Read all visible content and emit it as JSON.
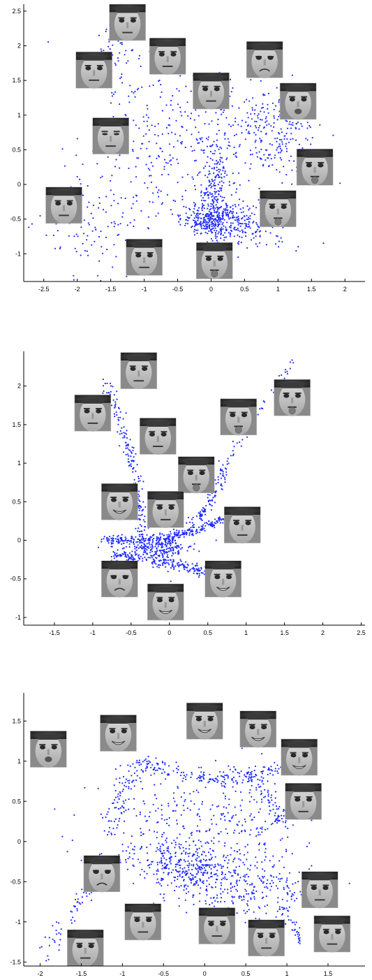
{
  "chart_data": [
    {
      "type": "scatter",
      "title": "",
      "xlabel": "",
      "ylabel": "",
      "xlim": [
        -2.8,
        2.3
      ],
      "ylim": [
        -1.4,
        2.6
      ],
      "xticks": [
        -2.5,
        -2,
        -1.5,
        -1,
        -0.5,
        0,
        0.5,
        1,
        1.5,
        2
      ],
      "xtick_labels": [
        "-2.5",
        "-2",
        "-1.5",
        "-1",
        "-0.5",
        "0",
        "0.5",
        "1",
        "1.5",
        "2"
      ],
      "yticks": [
        -1,
        -0.5,
        0,
        0.5,
        1,
        1.5,
        2,
        2.5
      ],
      "ytick_labels": [
        "-1",
        "-0.5",
        "0",
        "0.5",
        "1",
        "1.5",
        "2",
        "2.5"
      ],
      "grid": false,
      "marker_color": "#1f2bff",
      "face_thumbnails": [
        {
          "x": -1.25,
          "y": 2.45,
          "expression": "neutral"
        },
        {
          "x": -1.75,
          "y": 1.65,
          "expression": "neutral"
        },
        {
          "x": -0.65,
          "y": 1.85,
          "expression": "neutral"
        },
        {
          "x": 0.0,
          "y": 1.35,
          "expression": "neutral"
        },
        {
          "x": 0.8,
          "y": 1.8,
          "expression": "frown"
        },
        {
          "x": 1.3,
          "y": 1.2,
          "expression": "pout"
        },
        {
          "x": -1.5,
          "y": 0.7,
          "expression": "squint"
        },
        {
          "x": 1.55,
          "y": 0.25,
          "expression": "tongue"
        },
        {
          "x": 1.0,
          "y": -0.35,
          "expression": "tongue"
        },
        {
          "x": -2.2,
          "y": -0.3,
          "expression": "neutral"
        },
        {
          "x": -1.0,
          "y": -1.05,
          "expression": "neutral"
        },
        {
          "x": 0.05,
          "y": -1.1,
          "expression": "tongue"
        }
      ],
      "clusters": [
        {
          "cx": 0.05,
          "cy": -0.5,
          "sx": 0.25,
          "sy": 0.12,
          "n": 320
        },
        {
          "cx": 0.05,
          "cy": -0.05,
          "sx": 0.12,
          "sy": 0.45,
          "n": 240
        },
        {
          "cx": 0.9,
          "cy": 0.75,
          "sx": 0.35,
          "sy": 0.35,
          "n": 260
        },
        {
          "cx": -0.7,
          "cy": 0.6,
          "sx": 0.55,
          "sy": 0.55,
          "n": 240
        },
        {
          "cx": -1.7,
          "cy": -0.5,
          "sx": 0.45,
          "sy": 0.4,
          "n": 120
        },
        {
          "cx": -1.4,
          "cy": 1.8,
          "sx": 0.2,
          "sy": 0.35,
          "n": 70
        },
        {
          "cx": 0.6,
          "cy": -0.6,
          "sx": 0.3,
          "sy": 0.18,
          "n": 120
        }
      ]
    },
    {
      "type": "scatter",
      "title": "",
      "xlabel": "",
      "ylabel": "",
      "xlim": [
        -1.9,
        2.55
      ],
      "ylim": [
        -1.1,
        2.45
      ],
      "xticks": [
        -1.5,
        -1,
        -0.5,
        0,
        0.5,
        1,
        1.5,
        2,
        2.5
      ],
      "xtick_labels": [
        "-1.5",
        "-1",
        "-0.5",
        "0",
        "0.5",
        "1",
        "1.5",
        "2",
        "2.5"
      ],
      "yticks": [
        -1,
        -0.5,
        0,
        0.5,
        1,
        1.5,
        2
      ],
      "ytick_labels": [
        "-1",
        "-0.5",
        "0",
        "0.5",
        "1",
        "1.5",
        "2"
      ],
      "grid": false,
      "marker_color": "#1f2bff",
      "face_thumbnails": [
        {
          "x": -0.4,
          "y": 2.2,
          "expression": "neutral"
        },
        {
          "x": -1.0,
          "y": 1.65,
          "expression": "neutral"
        },
        {
          "x": -0.15,
          "y": 1.35,
          "expression": "neutral"
        },
        {
          "x": 0.9,
          "y": 1.6,
          "expression": "tongue"
        },
        {
          "x": 1.6,
          "y": 1.85,
          "expression": "tongue"
        },
        {
          "x": 0.35,
          "y": 0.85,
          "expression": "tongue"
        },
        {
          "x": -0.65,
          "y": 0.5,
          "expression": "smile"
        },
        {
          "x": -0.05,
          "y": 0.4,
          "expression": "neutral"
        },
        {
          "x": 0.95,
          "y": 0.2,
          "expression": "neutral"
        },
        {
          "x": -0.65,
          "y": -0.5,
          "expression": "frown"
        },
        {
          "x": 0.7,
          "y": -0.5,
          "expression": "smile"
        },
        {
          "x": -0.05,
          "y": -0.8,
          "expression": "smile"
        }
      ],
      "curves": [
        {
          "from": [
            -0.85,
            0.02
          ],
          "to": [
            0.85,
            0.35
          ],
          "bend": -0.15,
          "n": 260,
          "spread": 0.03
        },
        {
          "from": [
            -0.75,
            -0.2
          ],
          "to": [
            0.5,
            -0.42
          ],
          "bend": 0.05,
          "n": 200,
          "spread": 0.04
        },
        {
          "from": [
            -0.1,
            -0.05
          ],
          "to": [
            0.75,
            1.05
          ],
          "bend": -0.25,
          "n": 140,
          "spread": 0.04
        },
        {
          "from": [
            -0.35,
            -0.05
          ],
          "to": [
            -0.85,
            2.05
          ],
          "bend": -0.1,
          "n": 180,
          "spread": 0.04
        },
        {
          "from": [
            0.75,
            1.05
          ],
          "to": [
            1.6,
            2.3
          ],
          "bend": 0.0,
          "n": 40,
          "spread": 0.04
        },
        {
          "from": [
            -0.1,
            -0.5
          ],
          "to": [
            0.05,
            -0.85
          ],
          "bend": 0.0,
          "n": 25,
          "spread": 0.03
        }
      ],
      "clusters": [
        {
          "cx": -0.15,
          "cy": -0.1,
          "sx": 0.25,
          "sy": 0.06,
          "n": 200
        }
      ]
    },
    {
      "type": "scatter",
      "title": "",
      "xlabel": "",
      "ylabel": "",
      "xlim": [
        -2.2,
        1.95
      ],
      "ylim": [
        -1.55,
        1.85
      ],
      "xticks": [
        -2,
        -1.5,
        -1,
        -0.5,
        0,
        0.5,
        1,
        1.5
      ],
      "xtick_labels": [
        "-2",
        "-1.5",
        "-1",
        "-0.5",
        "0",
        "0.5",
        "1",
        "1.5"
      ],
      "yticks": [
        -1.5,
        -1,
        -0.5,
        0,
        0.5,
        1,
        1.5
      ],
      "ytick_labels": [
        "-1.5",
        "-1",
        "-0.5",
        "0",
        "0.5",
        "1",
        "1.5"
      ],
      "grid": false,
      "marker_color": "#1f2bff",
      "face_thumbnails": [
        {
          "x": -1.9,
          "y": 1.15,
          "expression": "pout"
        },
        {
          "x": -1.05,
          "y": 1.35,
          "expression": "smile"
        },
        {
          "x": 0.0,
          "y": 1.5,
          "expression": "smile"
        },
        {
          "x": 0.65,
          "y": 1.4,
          "expression": "smile"
        },
        {
          "x": 1.15,
          "y": 1.05,
          "expression": "smile"
        },
        {
          "x": 1.2,
          "y": 0.5,
          "expression": "neutral"
        },
        {
          "x": -1.25,
          "y": -0.4,
          "expression": "frown"
        },
        {
          "x": 1.4,
          "y": -0.6,
          "expression": "neutral"
        },
        {
          "x": -0.75,
          "y": -1.0,
          "expression": "neutral"
        },
        {
          "x": 0.15,
          "y": -1.05,
          "expression": "neutral"
        },
        {
          "x": 0.75,
          "y": -1.2,
          "expression": "neutral"
        },
        {
          "x": 1.55,
          "y": -1.15,
          "expression": "neutral"
        },
        {
          "x": -1.45,
          "y": -1.4,
          "expression": "neutral"
        }
      ],
      "curves": [
        {
          "from": [
            -1.15,
            0.25
          ],
          "to": [
            -0.75,
            1.0
          ],
          "bend": 0.1,
          "n": 70,
          "spread": 0.07
        },
        {
          "from": [
            -0.75,
            1.0
          ],
          "to": [
            1.0,
            0.95
          ],
          "bend": -0.2,
          "n": 160,
          "spread": 0.05
        },
        {
          "from": [
            0.5,
            0.85
          ],
          "to": [
            0.95,
            0.2
          ],
          "bend": 0.1,
          "n": 80,
          "spread": 0.05
        },
        {
          "from": [
            -1.95,
            -1.45
          ],
          "to": [
            -0.95,
            -0.15
          ],
          "bend": 0.1,
          "n": 90,
          "spread": 0.06
        },
        {
          "from": [
            0.9,
            -0.8
          ],
          "to": [
            1.2,
            -1.25
          ],
          "bend": 0.0,
          "n": 40,
          "spread": 0.04
        }
      ],
      "clusters": [
        {
          "cx": -0.2,
          "cy": -0.3,
          "sx": 0.25,
          "sy": 0.15,
          "n": 280
        },
        {
          "cx": 0.45,
          "cy": -0.55,
          "sx": 0.45,
          "sy": 0.2,
          "n": 300
        },
        {
          "cx": -0.55,
          "cy": 0.2,
          "sx": 0.45,
          "sy": 0.35,
          "n": 220
        },
        {
          "cx": 0.5,
          "cy": 0.25,
          "sx": 0.35,
          "sy": 0.3,
          "n": 140
        }
      ]
    }
  ]
}
